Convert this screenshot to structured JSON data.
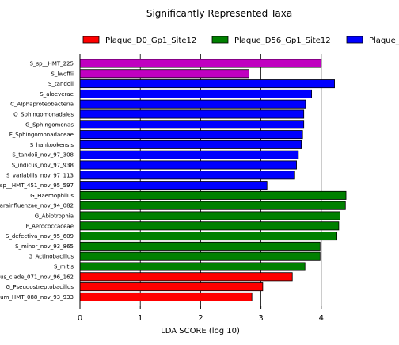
{
  "chart_data": {
    "type": "bar",
    "orientation": "horizontal",
    "title": "Significantly Represented Taxa",
    "xlabel": "LDA SCORE (log 10)",
    "ylabel": "",
    "xlim": [
      0,
      5
    ],
    "xticks": [
      0,
      1,
      2,
      3,
      4
    ],
    "grid": "vertical",
    "legend": {
      "placement": "top",
      "entries": [
        {
          "name": "Plaque_D0_Gp1_Site12",
          "color": "#ff0000"
        },
        {
          "name": "Plaque_D56_Gp1_Site12",
          "color": "#008000"
        },
        {
          "name": "Plaque_",
          "color": "#0000ff"
        }
      ]
    },
    "categories": [
      "S_sp__HMT_225",
      "S_lwoffii",
      "S_tandoii",
      "S_aloeverae",
      "C_Alphaproteobacteria",
      "O_Sphingomonadales",
      "G_Sphingomonas",
      "F_Sphingomonadaceae",
      "S_hankookensis",
      "S_tandoii_nov_97_308",
      "S_indicus_nov_97_938",
      "S_variabilis_nov_97_113",
      "sp__HMT_451_nov_95_597",
      "G_Haemophilus",
      "arainfluenzae_nov_94_082",
      "G_Abiotrophia",
      "F_Aerococcaceae",
      "S_defectiva_nov_95_609",
      "S_minor_nov_93_865",
      "G_Actinobacillus",
      "S_mitis",
      "us_clade_071_nov_96_162",
      "G_Pseudostreptobacillus",
      "um_HMT_088_nov_93_933"
    ],
    "values": [
      4.0,
      2.8,
      4.22,
      3.84,
      3.74,
      3.71,
      3.71,
      3.69,
      3.67,
      3.62,
      3.59,
      3.56,
      3.1,
      4.41,
      4.4,
      4.31,
      4.29,
      4.26,
      3.98,
      3.98,
      3.73,
      3.52,
      3.03,
      2.85
    ],
    "colors": [
      "#c000c0",
      "#c000c0",
      "#0000ff",
      "#0000ff",
      "#0000ff",
      "#0000ff",
      "#0000ff",
      "#0000ff",
      "#0000ff",
      "#0000ff",
      "#0000ff",
      "#0000ff",
      "#0000ff",
      "#008000",
      "#008000",
      "#008000",
      "#008000",
      "#008000",
      "#008000",
      "#008000",
      "#008000",
      "#ff0000",
      "#ff0000",
      "#ff0000"
    ]
  }
}
